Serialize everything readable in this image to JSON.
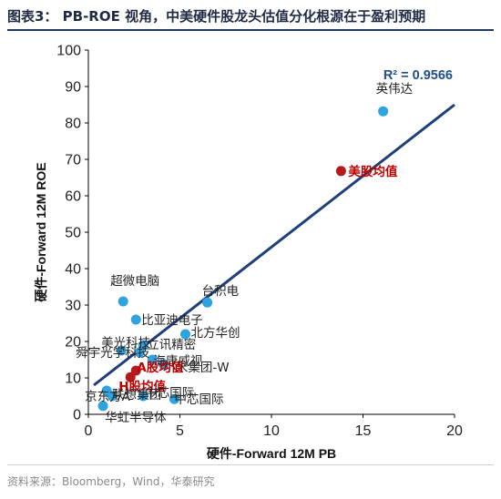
{
  "header": {
    "title": "图表3：  PB-ROE 视角，中美硬件股龙头估值分化根源在于盈利预期"
  },
  "footer": {
    "source": "资料来源：Bloomberg，Wind，华泰研究"
  },
  "chart_data": {
    "type": "scatter",
    "title": "",
    "xlabel": "硬件-Forward 12M PB",
    "ylabel": "硬件-Forward 12M ROE",
    "xlim": [
      0,
      20
    ],
    "ylim": [
      0,
      100
    ],
    "x_ticks": [
      0,
      5,
      10,
      15,
      20
    ],
    "y_ticks": [
      0,
      10,
      20,
      30,
      40,
      50,
      60,
      70,
      80,
      90,
      100
    ],
    "r2_label": "R² = 0.9566",
    "trendline": {
      "x": [
        0.3,
        20
      ],
      "y": [
        8,
        85
      ],
      "color": "#1f3f7a"
    },
    "colors": {
      "company": "#2ea3e0",
      "average": "#b41a1a",
      "average_label": "#c00000"
    },
    "points": [
      {
        "label": "英伟达",
        "x": 16.1,
        "y": 83.2,
        "kind": "company"
      },
      {
        "label": "美股均值",
        "x": 13.8,
        "y": 66.8,
        "kind": "average"
      },
      {
        "label": "超微电脑",
        "x": 1.9,
        "y": 31.0,
        "kind": "company"
      },
      {
        "label": "台积电",
        "x": 6.5,
        "y": 30.7,
        "kind": "company"
      },
      {
        "label": "比亚迪电子",
        "x": 2.6,
        "y": 26.0,
        "kind": "company"
      },
      {
        "label": "立讯精密",
        "x": 3.0,
        "y": 19.0,
        "kind": "company"
      },
      {
        "label": "北方华创",
        "x": 5.3,
        "y": 22.0,
        "kind": "company"
      },
      {
        "label": "美光科技",
        "x": 1.8,
        "y": 17.5,
        "kind": "company"
      },
      {
        "label": "舜宇光学科技",
        "x": 2.8,
        "y": 17.0,
        "kind": "company"
      },
      {
        "label": "海康威视",
        "x": 3.5,
        "y": 15.0,
        "kind": "company"
      },
      {
        "label": "小米集团-W",
        "x": 4.1,
        "y": 13.8,
        "kind": "company"
      },
      {
        "label": "A股均值",
        "x": 2.6,
        "y": 12.0,
        "kind": "average"
      },
      {
        "label": "H股均值",
        "x": 2.3,
        "y": 10.2,
        "kind": "average"
      },
      {
        "label": "京东方A",
        "x": 1.0,
        "y": 6.5,
        "kind": "company"
      },
      {
        "label": "联想集团",
        "x": 1.3,
        "y": 5.0,
        "kind": "company"
      },
      {
        "label": "中芯国际",
        "x": 3.0,
        "y": 5.0,
        "kind": "company"
      },
      {
        "label": "中芯国际",
        "x": 4.7,
        "y": 4.2,
        "kind": "company"
      },
      {
        "label": "华虹半导体",
        "x": 0.8,
        "y": 2.3,
        "kind": "company"
      }
    ]
  }
}
